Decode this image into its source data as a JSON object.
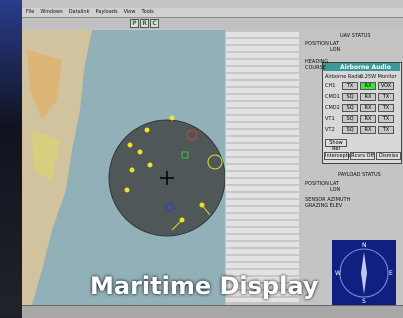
{
  "menu": [
    "File",
    "Windows",
    "Datalink",
    "Payloads",
    "View",
    "Tools"
  ],
  "toolbar_buttons": [
    "P",
    "R",
    "C"
  ],
  "uav_status": {
    "title": "UAV STATUS",
    "labels": [
      "POSITION",
      "LAT",
      "LON",
      "HEADING",
      "COURSE"
    ]
  },
  "audio": {
    "title": "Airborne Audio",
    "subtitle": [
      "Airborne Radio",
      "0.25W Monitor"
    ],
    "rows": [
      {
        "label": "CH1",
        "buttons": [
          "TX",
          "RX",
          "VOX"
        ]
      },
      {
        "label": "CMD1",
        "buttons": [
          "SQ",
          "RX",
          "TX"
        ]
      },
      {
        "label": "CMD2",
        "buttons": [
          "SQ",
          "RX",
          "TX"
        ]
      },
      {
        "label": "VT1",
        "buttons": [
          "SQ",
          "RX",
          "TX"
        ]
      },
      {
        "label": "VT2",
        "buttons": [
          "SQ",
          "RX",
          "TX"
        ]
      }
    ],
    "action": "Show Rel",
    "bottom": [
      "Intercepts",
      "Rcvrs Off",
      "Dismiss"
    ]
  },
  "payload_status": {
    "title": "PAYLOAD STATUS",
    "labels": [
      "POSITION",
      "LAT",
      "LON",
      "SENSOR AZIMUTH",
      "GRAZING ELEV"
    ]
  },
  "compass": [
    "N",
    "E",
    "S",
    "W"
  ],
  "caption": "Maritime Display"
}
